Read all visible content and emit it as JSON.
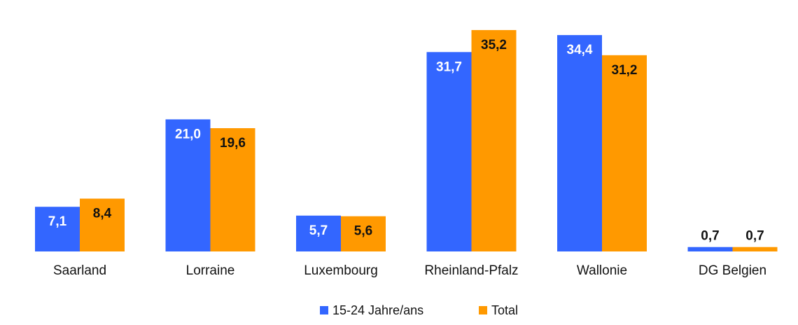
{
  "chart_data": {
    "type": "bar",
    "categories": [
      "Saarland",
      "Lorraine",
      "Luxembourg",
      "Rheinland-Pfalz",
      "Wallonie",
      "DG Belgien"
    ],
    "series": [
      {
        "name": "15-24 Jahre/ans",
        "color": "#3366ff",
        "values": [
          7.1,
          21.0,
          5.7,
          31.7,
          34.4,
          0.7
        ],
        "labels": [
          "7,1",
          "21,0",
          "5,7",
          "31,7",
          "34,4",
          "0,7"
        ]
      },
      {
        "name": "Total",
        "color": "#ff9900",
        "values": [
          8.4,
          19.6,
          5.6,
          35.2,
          31.2,
          0.7
        ],
        "labels": [
          "8,4",
          "19,6",
          "5,6",
          "35,2",
          "31,2",
          "0,7"
        ]
      }
    ],
    "ylim": [
      0,
      36
    ],
    "grid": false,
    "legend": "bottom-center",
    "title": "",
    "xlabel": "",
    "ylabel": ""
  }
}
